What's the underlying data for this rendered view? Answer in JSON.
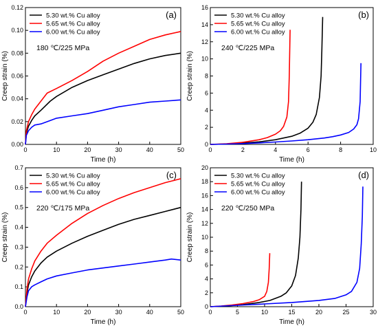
{
  "chart_data": [
    {
      "type": "line",
      "panel": "(a)",
      "condition": "180 ℃/225 MPa",
      "xlabel": "Time (h)",
      "ylabel": "Creep strain (%)",
      "xlim": [
        0,
        50
      ],
      "ylim": [
        0,
        0.12
      ],
      "xticks": [
        0,
        10,
        20,
        30,
        40,
        50
      ],
      "yticks": [
        0.0,
        0.02,
        0.04,
        0.06,
        0.08,
        0.1,
        0.12
      ],
      "ytick_labels": [
        "0.00",
        "0.02",
        "0.04",
        "0.06",
        "0.08",
        "0.10",
        "0.12"
      ],
      "legend_position": "top-left",
      "series": [
        {
          "name": "5.30 wt.% Cu alloy",
          "color": "#000000",
          "x": [
            0,
            0.3,
            1,
            2,
            3,
            5,
            8,
            10,
            15,
            20,
            25,
            30,
            35,
            40,
            45,
            50
          ],
          "y": [
            0,
            0.01,
            0.016,
            0.021,
            0.025,
            0.03,
            0.038,
            0.042,
            0.05,
            0.056,
            0.061,
            0.066,
            0.071,
            0.075,
            0.078,
            0.08
          ]
        },
        {
          "name": "5.65 wt.% Cu alloy",
          "color": "#ff0000",
          "x": [
            0,
            0.3,
            1,
            2,
            3,
            5,
            7,
            10,
            15,
            20,
            25,
            30,
            35,
            40,
            45,
            50
          ],
          "y": [
            0,
            0.012,
            0.02,
            0.026,
            0.031,
            0.038,
            0.045,
            0.049,
            0.056,
            0.064,
            0.073,
            0.08,
            0.086,
            0.092,
            0.096,
            0.099
          ]
        },
        {
          "name": "6.00 wt.% Cu alloy",
          "color": "#0000ff",
          "x": [
            0,
            0.3,
            1,
            2,
            3,
            5,
            8,
            10,
            15,
            20,
            25,
            30,
            35,
            40,
            45,
            50
          ],
          "y": [
            0,
            0.008,
            0.012,
            0.015,
            0.017,
            0.018,
            0.021,
            0.023,
            0.025,
            0.027,
            0.03,
            0.033,
            0.035,
            0.037,
            0.038,
            0.039
          ]
        }
      ]
    },
    {
      "type": "line",
      "panel": "(b)",
      "condition": "240 ℃/225 MPa",
      "xlabel": "Time (h)",
      "ylabel": "Creep strain (%)",
      "xlim": [
        0,
        10
      ],
      "ylim": [
        0,
        16
      ],
      "xticks": [
        0,
        2,
        4,
        6,
        8,
        10
      ],
      "yticks": [
        0,
        2,
        4,
        6,
        8,
        10,
        12,
        14,
        16
      ],
      "ytick_labels": [
        "0",
        "2",
        "4",
        "6",
        "8",
        "10",
        "12",
        "14",
        "16"
      ],
      "legend_position": "top-left",
      "series": [
        {
          "name": "5.30 wt.% Cu alloy",
          "color": "#000000",
          "x": [
            0,
            1,
            2,
            3,
            4,
            5,
            5.5,
            6,
            6.3,
            6.5,
            6.7,
            6.8,
            6.85,
            6.9
          ],
          "y": [
            0,
            0.05,
            0.15,
            0.3,
            0.55,
            0.95,
            1.3,
            1.9,
            2.6,
            3.5,
            5.5,
            8.0,
            11.0,
            14.9
          ]
        },
        {
          "name": "5.65 wt.% Cu alloy",
          "color": "#ff0000",
          "x": [
            0,
            1,
            2,
            3,
            3.5,
            4,
            4.3,
            4.5,
            4.7,
            4.8,
            4.85,
            4.9
          ],
          "y": [
            0,
            0.08,
            0.25,
            0.55,
            0.8,
            1.2,
            1.6,
            2.1,
            3.2,
            5.0,
            8.0,
            13.4
          ]
        },
        {
          "name": "6.00 wt.% Cu alloy",
          "color": "#0000ff",
          "x": [
            0,
            1,
            2,
            3,
            4,
            5,
            6,
            7,
            7.5,
            8,
            8.5,
            8.8,
            9.0,
            9.1,
            9.2,
            9.25
          ],
          "y": [
            0,
            0.04,
            0.1,
            0.18,
            0.28,
            0.4,
            0.55,
            0.75,
            0.9,
            1.1,
            1.4,
            1.8,
            2.3,
            3.0,
            5.0,
            9.5
          ]
        }
      ]
    },
    {
      "type": "line",
      "panel": "(c)",
      "condition": "220 ℃/175 MPa",
      "xlabel": "Time (h)",
      "ylabel": "Creep strain (%)",
      "xlim": [
        0,
        50
      ],
      "ylim": [
        0,
        0.7
      ],
      "xticks": [
        0,
        10,
        20,
        30,
        40,
        50
      ],
      "yticks": [
        0.0,
        0.1,
        0.2,
        0.3,
        0.4,
        0.5,
        0.6,
        0.7
      ],
      "ytick_labels": [
        "0.0",
        "0.1",
        "0.2",
        "0.3",
        "0.4",
        "0.5",
        "0.6",
        "0.7"
      ],
      "legend_position": "top-left",
      "series": [
        {
          "name": "5.30 wt.% Cu alloy",
          "color": "#000000",
          "x": [
            0,
            0.5,
            1,
            2,
            3,
            5,
            7,
            10,
            15,
            20,
            25,
            30,
            35,
            40,
            45,
            50
          ],
          "y": [
            0,
            0.07,
            0.11,
            0.15,
            0.18,
            0.22,
            0.25,
            0.28,
            0.32,
            0.355,
            0.385,
            0.415,
            0.44,
            0.46,
            0.48,
            0.5
          ]
        },
        {
          "name": "5.65 wt.% Cu alloy",
          "color": "#ff0000",
          "x": [
            0,
            0.5,
            1,
            2,
            3,
            5,
            7,
            10,
            15,
            20,
            25,
            30,
            35,
            40,
            45,
            50
          ],
          "y": [
            0,
            0.09,
            0.14,
            0.19,
            0.23,
            0.28,
            0.32,
            0.36,
            0.42,
            0.47,
            0.51,
            0.545,
            0.575,
            0.6,
            0.625,
            0.645
          ]
        },
        {
          "name": "6.00 wt.% Cu alloy",
          "color": "#0000ff",
          "x": [
            0,
            0.5,
            1,
            2,
            3,
            5,
            7,
            10,
            15,
            20,
            25,
            30,
            35,
            40,
            45,
            47,
            50
          ],
          "y": [
            0,
            0.05,
            0.08,
            0.1,
            0.11,
            0.125,
            0.14,
            0.155,
            0.17,
            0.185,
            0.195,
            0.205,
            0.215,
            0.225,
            0.235,
            0.24,
            0.235
          ]
        }
      ]
    },
    {
      "type": "line",
      "panel": "(d)",
      "condition": "220 ℃/250 MPa",
      "xlabel": "Time (h)",
      "ylabel": "Creep strain (%)",
      "xlim": [
        0,
        30
      ],
      "ylim": [
        0,
        20
      ],
      "xticks": [
        0,
        5,
        10,
        15,
        20,
        25,
        30
      ],
      "yticks": [
        0,
        2,
        4,
        6,
        8,
        10,
        12,
        14,
        16,
        18,
        20
      ],
      "ytick_labels": [
        "0",
        "2",
        "4",
        "6",
        "8",
        "10",
        "12",
        "14",
        "16",
        "18",
        "20"
      ],
      "legend_position": "top-left",
      "series": [
        {
          "name": "5.30 wt.% Cu alloy",
          "color": "#000000",
          "x": [
            0,
            3,
            6,
            9,
            11,
            13,
            14,
            15,
            15.7,
            16.2,
            16.5,
            16.7,
            16.8
          ],
          "y": [
            0,
            0.1,
            0.3,
            0.6,
            0.9,
            1.5,
            2.0,
            3.0,
            4.5,
            7.0,
            10.0,
            14.0,
            18.0
          ]
        },
        {
          "name": "5.65 wt.% Cu alloy",
          "color": "#ff0000",
          "x": [
            0,
            2,
            4,
            6,
            8,
            9,
            10,
            10.4,
            10.7,
            10.85,
            10.95
          ],
          "y": [
            0,
            0.1,
            0.25,
            0.45,
            0.75,
            1.0,
            1.5,
            2.2,
            3.5,
            5.5,
            7.7
          ]
        },
        {
          "name": "6.00 wt.% Cu alloy",
          "color": "#0000ff",
          "x": [
            0,
            5,
            10,
            15,
            20,
            23,
            25,
            26,
            27,
            27.5,
            27.8,
            28.0,
            28.1
          ],
          "y": [
            0,
            0.2,
            0.4,
            0.6,
            0.9,
            1.2,
            1.7,
            2.2,
            3.5,
            5.5,
            9.0,
            13.0,
            17.3
          ]
        }
      ]
    }
  ]
}
